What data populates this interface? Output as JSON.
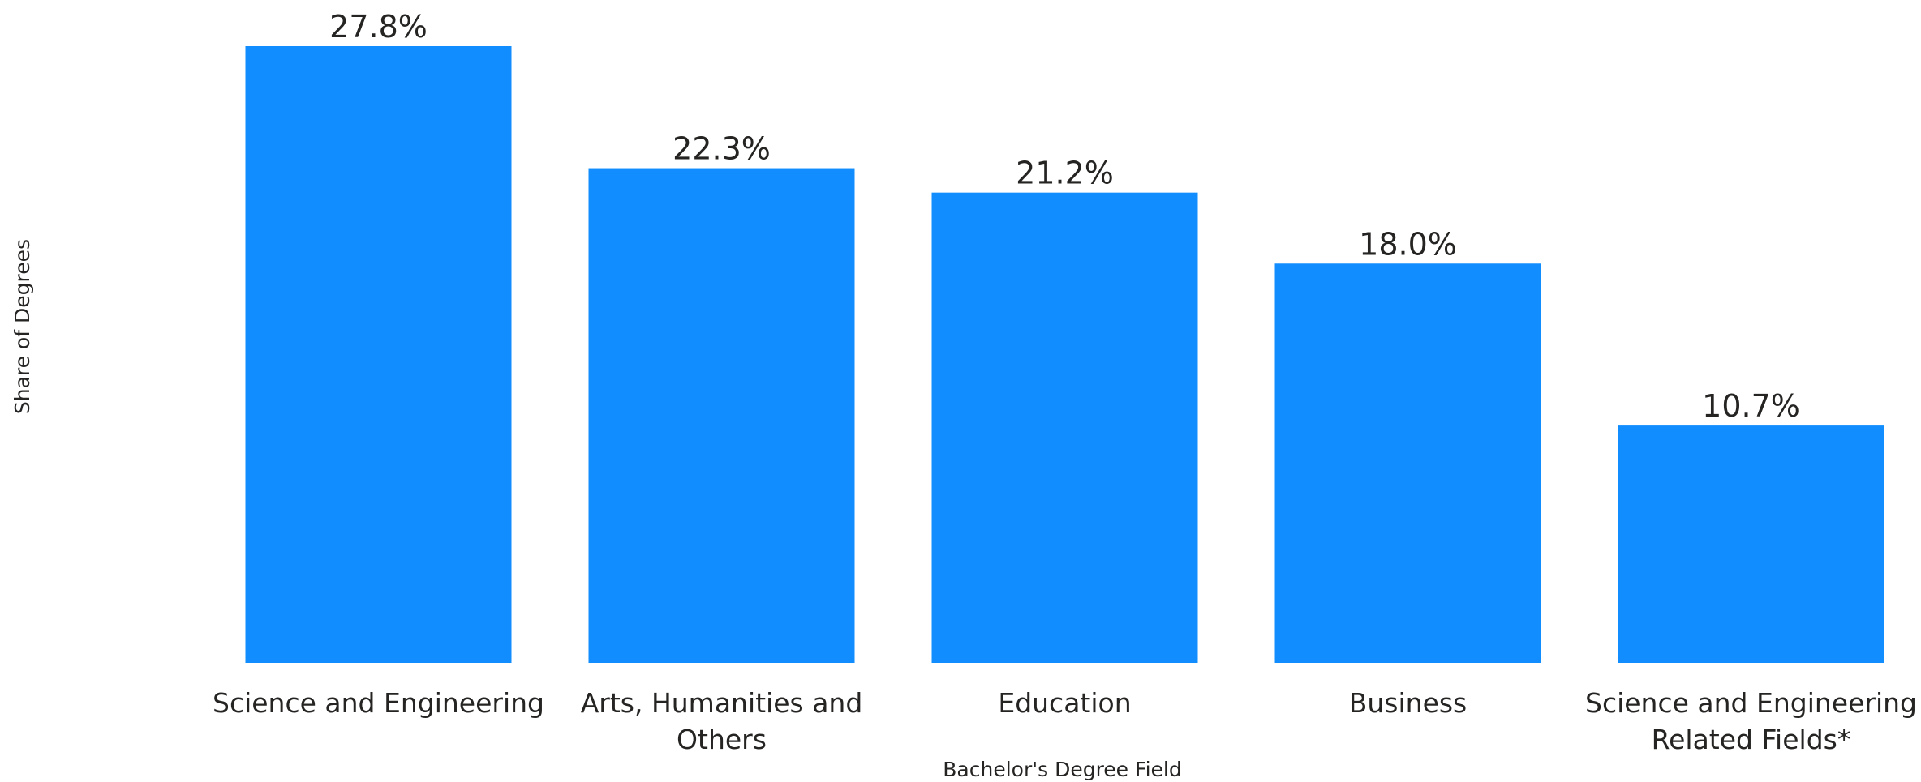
{
  "chart_data": {
    "type": "bar",
    "title": "",
    "xlabel": "Bachelor's Degree Field",
    "ylabel": "Share of Degrees",
    "categories": [
      "Science and Engineering",
      "Arts, Humanities and Others",
      "Education",
      "Business",
      "Science and Engineering Related Fields*"
    ],
    "category_lines": [
      [
        "Science and Engineering"
      ],
      [
        "Arts, Humanities and",
        "Others"
      ],
      [
        "Education"
      ],
      [
        "Business"
      ],
      [
        "Science and Engineering",
        "Related Fields*"
      ]
    ],
    "values": [
      27.8,
      22.3,
      21.2,
      18.0,
      10.7
    ],
    "value_labels": [
      "27.8%",
      "22.3%",
      "21.2%",
      "18.0%",
      "10.7%"
    ],
    "ylim": [
      0,
      27.8
    ],
    "grid": false,
    "bar_color": "#118DFF"
  }
}
